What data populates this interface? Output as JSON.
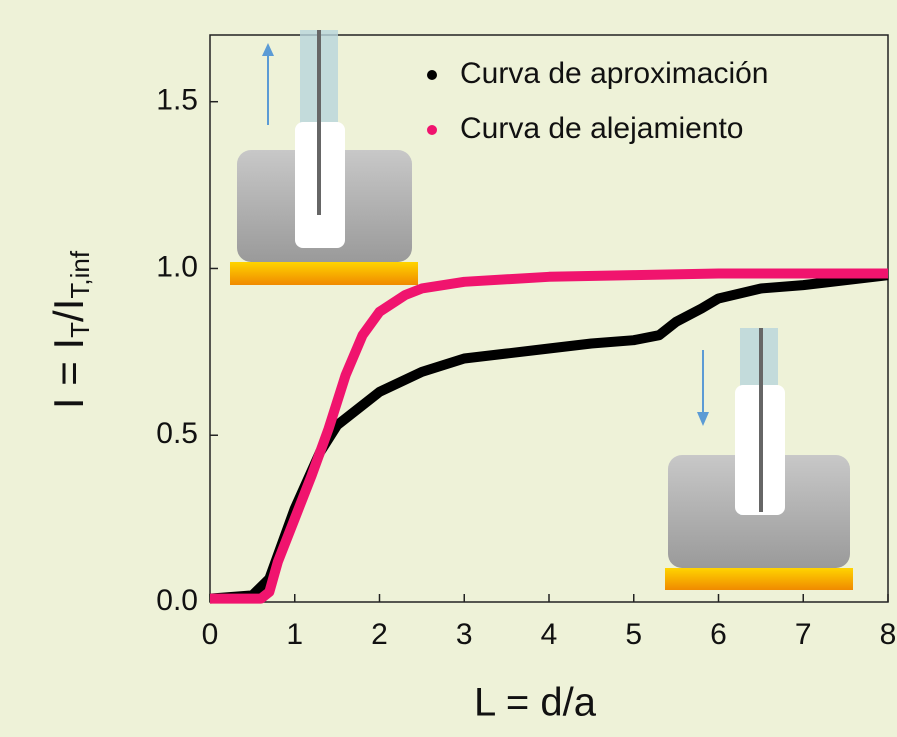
{
  "chart_data": {
    "type": "line",
    "x_label": "L = d/a",
    "y_label": [
      "I = I",
      "T",
      "/I",
      "T,inf"
    ],
    "xlim": [
      0,
      8
    ],
    "ylim": [
      0,
      1.7
    ],
    "xticks": [
      0,
      1,
      2,
      3,
      4,
      5,
      6,
      7,
      8
    ],
    "yticks": [
      {
        "value": 0,
        "label": "0.0"
      },
      {
        "value": 0.5,
        "label": "0.5"
      },
      {
        "value": 1,
        "label": "1.0"
      },
      {
        "value": 1.5,
        "label": "1.5"
      }
    ],
    "series": [
      {
        "name": "Curva de aproximación",
        "color": "#000000",
        "x": [
          0,
          0.5,
          0.7,
          1.0,
          1.3,
          1.5,
          2,
          2.5,
          3,
          3.5,
          4,
          4.5,
          5,
          5.3,
          5.5,
          5.8,
          6,
          6.5,
          7,
          7.5,
          8
        ],
        "values": [
          0.01,
          0.02,
          0.07,
          0.28,
          0.45,
          0.53,
          0.63,
          0.69,
          0.73,
          0.745,
          0.76,
          0.775,
          0.785,
          0.8,
          0.84,
          0.88,
          0.91,
          0.94,
          0.95,
          0.965,
          0.98
        ]
      },
      {
        "name": "Curva de alejamiento",
        "color": "#f0146e",
        "x": [
          0,
          0.6,
          0.7,
          0.8,
          1.0,
          1.2,
          1.4,
          1.6,
          1.8,
          2.0,
          2.3,
          2.5,
          3,
          4,
          5,
          6,
          7,
          8
        ],
        "values": [
          0.01,
          0.01,
          0.03,
          0.12,
          0.25,
          0.38,
          0.52,
          0.68,
          0.8,
          0.87,
          0.92,
          0.94,
          0.96,
          0.975,
          0.98,
          0.985,
          0.985,
          0.985
        ]
      }
    ]
  }
}
